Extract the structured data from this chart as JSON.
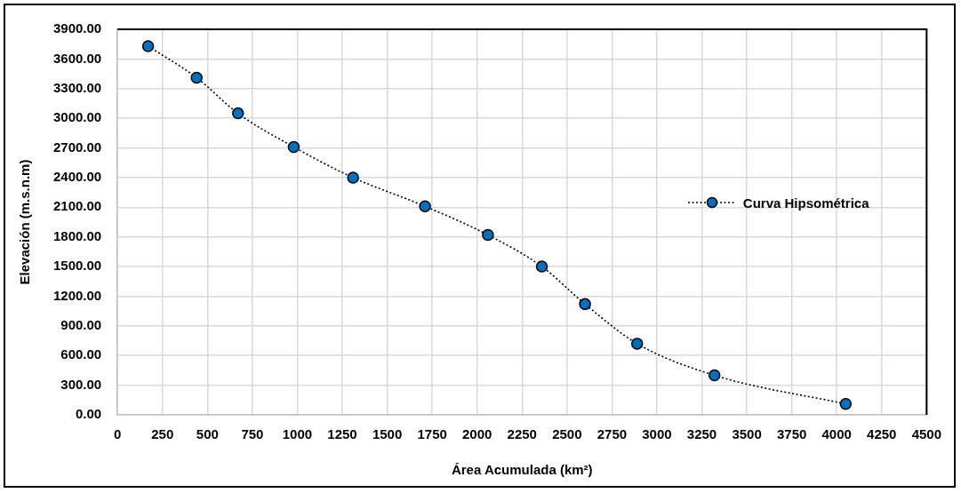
{
  "chart_data": {
    "type": "line",
    "xlabel": "Área Acumulada (km²)",
    "ylabel": "Elevación (m.s.n.m)",
    "series": [
      {
        "name": "Curva Hipsométrica",
        "color": "#0070c0",
        "x": [
          170,
          440,
          670,
          980,
          1310,
          1710,
          2060,
          2360,
          2600,
          2890,
          3320,
          4050
        ],
        "values": [
          3730,
          3410,
          3050,
          2710,
          2400,
          2110,
          1820,
          1500,
          1120,
          720,
          400,
          110
        ]
      }
    ],
    "xlim": [
      0,
      4500
    ],
    "xticks": [
      0,
      250,
      500,
      750,
      1000,
      1250,
      1500,
      1750,
      2000,
      2250,
      2500,
      2750,
      3000,
      3250,
      3500,
      3750,
      4000,
      4250,
      4500
    ],
    "ylim": [
      0,
      3900
    ],
    "yticks": [
      {
        "value": 0,
        "label": "0.00"
      },
      {
        "value": 300,
        "label": "300.00"
      },
      {
        "value": 600,
        "label": "600.00"
      },
      {
        "value": 900,
        "label": "900.00"
      },
      {
        "value": 1200,
        "label": "1200.00"
      },
      {
        "value": 1500,
        "label": "1500.00"
      },
      {
        "value": 1800,
        "label": "1800.00"
      },
      {
        "value": 2100,
        "label": "2100.00"
      },
      {
        "value": 2400,
        "label": "2400.00"
      },
      {
        "value": 2700,
        "label": "2700.00"
      },
      {
        "value": 3000,
        "label": "3000.00"
      },
      {
        "value": 3300,
        "label": "3300.00"
      },
      {
        "value": 3600,
        "label": "3600.00"
      },
      {
        "value": 3900,
        "label": "3900.00"
      }
    ],
    "grid": true,
    "legend": "right",
    "marker": "circle",
    "line_style": "dotted"
  }
}
